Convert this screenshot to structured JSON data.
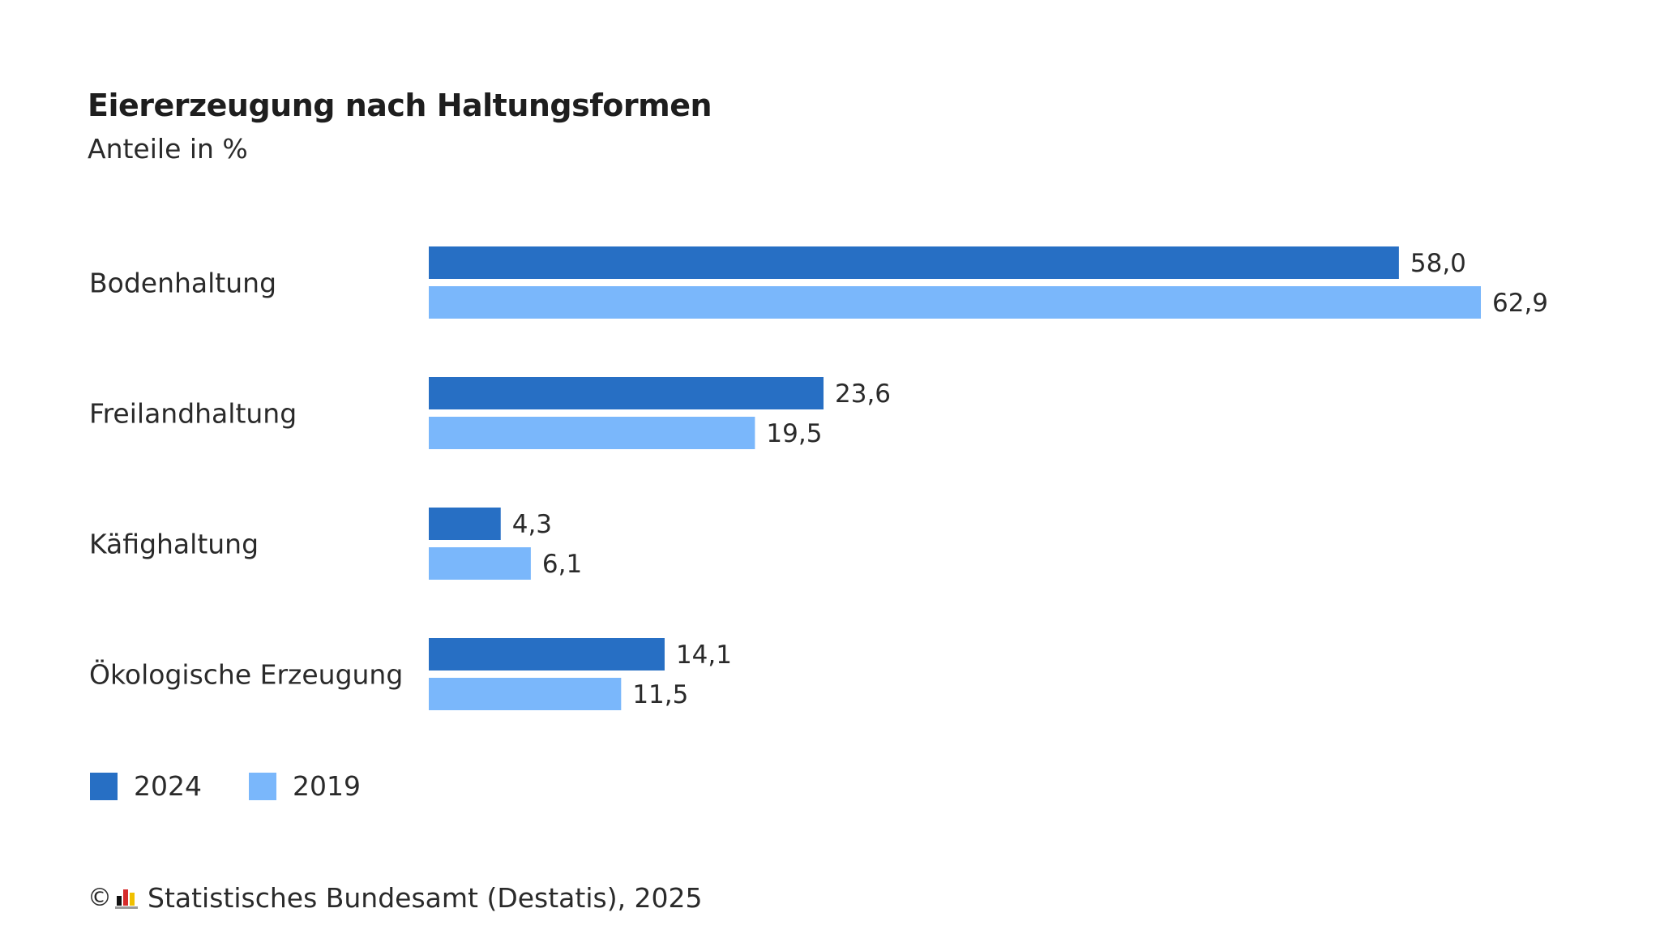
{
  "header": {
    "title": "Eiererzeugung nach Haltungsformen",
    "subtitle": "Anteile in %"
  },
  "chart_data": {
    "type": "bar",
    "orientation": "horizontal",
    "title": "Eiererzeugung nach Haltungsformen",
    "subtitle": "Anteile in %",
    "categories": [
      "Bodenhaltung",
      "Freilandhaltung",
      "Käfighaltung",
      "Ökologische Erzeugung"
    ],
    "series": [
      {
        "name": "2024",
        "color": "#276fc4",
        "values": [
          58.0,
          23.6,
          4.3,
          14.1
        ],
        "labels": [
          "58,0",
          "23,6",
          "4,3",
          "14,1"
        ]
      },
      {
        "name": "2019",
        "color": "#7ab7fb",
        "values": [
          62.9,
          19.5,
          6.1,
          11.5
        ],
        "labels": [
          "62,9",
          "19,5",
          "6,1",
          "11,5"
        ]
      }
    ],
    "xlim": [
      0,
      62.9
    ],
    "grid": false,
    "legend_position": "bottom-left"
  },
  "legend": {
    "items": [
      {
        "label": "2024",
        "color": "#276fc4"
      },
      {
        "label": "2019",
        "color": "#7ab7fb"
      }
    ]
  },
  "footer": {
    "copyright_symbol": "©",
    "source": "Statistisches Bundesamt (Destatis), 2025",
    "logo_icon": "destatis-logo-icon"
  }
}
